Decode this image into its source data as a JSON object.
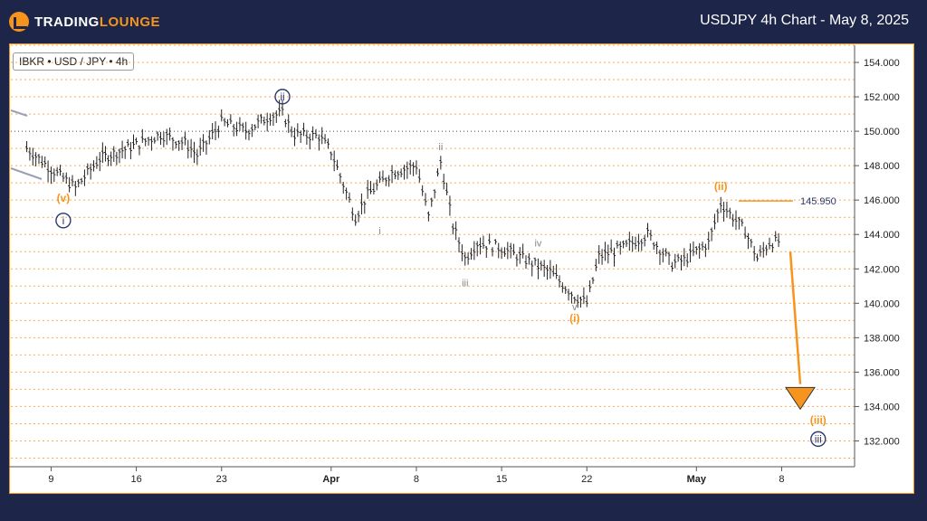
{
  "header": {
    "logo_pre": "TRADING",
    "logo_post": "LOUNGE",
    "chart_title": "USDJPY 4h Chart - May 8, 2025"
  },
  "symbol": "IBKR • USD / JPY • 4h",
  "colors": {
    "background": "#1d2548",
    "accent": "#f7941d",
    "navy_wave": "#2b3a6b",
    "gray_wave": "#888888",
    "grid": "#f7941d"
  },
  "chart_data": {
    "type": "line",
    "title": "USDJPY 4h Chart - May 8, 2025",
    "ylim": [
      130.5,
      155
    ],
    "y_ticks": [
      "154.000",
      "152.000",
      "150.000",
      "148.000",
      "146.000",
      "144.000",
      "142.000",
      "140.000",
      "138.000",
      "136.000",
      "134.000",
      "132.000"
    ],
    "x_ticks": [
      "9",
      "16",
      "23",
      "Apr",
      "8",
      "15",
      "22",
      "May",
      "8"
    ],
    "grid": "dotted horizontal",
    "price_marker": {
      "label": "145.950",
      "value": 145.95
    },
    "series": [
      {
        "x": [
          "Mar 7",
          "Mar 9",
          "Mar 11",
          "Mar 13",
          "Mar 16",
          "Mar 18",
          "Mar 20",
          "Mar 21",
          "Mar 23",
          "Mar 25",
          "Mar 27",
          "Mar 28",
          "Mar 29",
          "Mar 31",
          "Apr 1",
          "Apr 3",
          "Apr 4",
          "Apr 6",
          "Apr 8",
          "Apr 9",
          "Apr 10",
          "Apr 11",
          "Apr 12",
          "Apr 13",
          "Apr 15",
          "Apr 17",
          "Apr 19",
          "Apr 21",
          "Apr 22",
          "Apr 23",
          "Apr 25",
          "Apr 27",
          "Apr 29",
          "Apr 30",
          "May 2",
          "May 3",
          "May 5",
          "May 6",
          "May 7",
          "May 8"
        ],
        "values": [
          149.0,
          147.8,
          146.7,
          148.4,
          149.2,
          149.8,
          149.3,
          148.6,
          150.5,
          150.0,
          150.9,
          151.0,
          149.8,
          149.7,
          148.8,
          145.0,
          146.3,
          147.6,
          148.0,
          145.0,
          148.2,
          144.5,
          142.6,
          143.5,
          143.2,
          142.5,
          141.8,
          140.4,
          140.0,
          142.7,
          143.2,
          144.0,
          142.3,
          142.5,
          143.5,
          145.8,
          144.2,
          142.6,
          143.5,
          143.6
        ]
      }
    ],
    "wave_labels": [
      {
        "text": "(v)",
        "x": "Mar 10",
        "y": 145.9,
        "color": "orange"
      },
      {
        "text": "i",
        "x": "Mar 10",
        "y": 144.6,
        "color": "navy",
        "circled": true
      },
      {
        "text": "ii",
        "x": "Mar 28",
        "y": 151.8,
        "color": "navy",
        "circled": true
      },
      {
        "text": "i",
        "x": "Apr 5",
        "y": 144.0,
        "color": "gray"
      },
      {
        "text": "ii",
        "x": "Apr 10",
        "y": 148.9,
        "color": "gray"
      },
      {
        "text": "iii",
        "x": "Apr 12",
        "y": 141.0,
        "color": "gray"
      },
      {
        "text": "iv",
        "x": "Apr 18",
        "y": 143.3,
        "color": "gray"
      },
      {
        "text": "v",
        "x": "Apr 21",
        "y": 139.6,
        "color": "gray"
      },
      {
        "text": "(i)",
        "x": "Apr 21",
        "y": 138.9,
        "color": "orange"
      },
      {
        "text": "(ii)",
        "x": "May 3",
        "y": 146.6,
        "color": "orange"
      },
      {
        "text": "(iii)",
        "x": "May 11",
        "y": 133.0,
        "color": "orange"
      },
      {
        "text": "iii",
        "x": "May 11",
        "y": 131.9,
        "color": "navy",
        "circled": true
      }
    ]
  }
}
